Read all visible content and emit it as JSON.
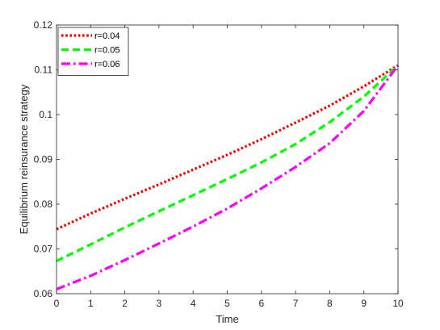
{
  "chart_data": {
    "type": "line",
    "xlabel": "Time",
    "ylabel": "Equilibrium reinsurance strategy",
    "xlim": [
      0,
      10
    ],
    "ylim": [
      0.06,
      0.12
    ],
    "x_ticks": [
      "0",
      "1",
      "2",
      "3",
      "4",
      "5",
      "6",
      "7",
      "8",
      "9",
      "10"
    ],
    "y_ticks": [
      "0.06",
      "0.07",
      "0.08",
      "0.09",
      "0.1",
      "0.11",
      "0.12"
    ],
    "grid": false,
    "legend_position": "top-left",
    "x": [
      0,
      1,
      2,
      3,
      4,
      5,
      6,
      7,
      8,
      9,
      10
    ],
    "series": [
      {
        "name": "r=0.04",
        "color": "#ff0000",
        "style": "dotted",
        "values": [
          0.0744,
          0.0779,
          0.0812,
          0.0844,
          0.0877,
          0.091,
          0.0945,
          0.0982,
          0.102,
          0.1063,
          0.111
        ]
      },
      {
        "name": "r=0.05",
        "color": "#00ff00",
        "style": "dashed",
        "values": [
          0.0673,
          0.071,
          0.0748,
          0.0784,
          0.082,
          0.0856,
          0.0893,
          0.0934,
          0.0983,
          0.104,
          0.111
        ]
      },
      {
        "name": "r=0.06",
        "color": "#ff00ff",
        "style": "dashdot",
        "values": [
          0.061,
          0.064,
          0.0675,
          0.0712,
          0.075,
          0.079,
          0.0835,
          0.0883,
          0.0936,
          0.1008,
          0.111
        ]
      }
    ]
  }
}
